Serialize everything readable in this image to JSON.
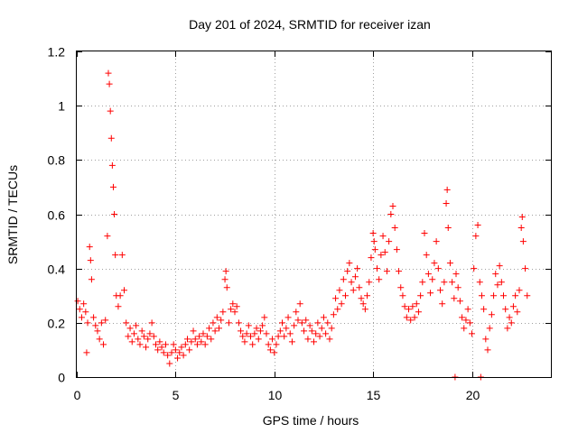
{
  "chart_data": {
    "type": "scatter",
    "title": "Day 201 of 2024, SRMTID for receiver izan",
    "xlabel": "GPS time / hours",
    "ylabel": "SRMTID / TECUs",
    "xlim": [
      0,
      24
    ],
    "ylim": [
      0,
      1.2
    ],
    "xticks": [
      0,
      5,
      10,
      15,
      20
    ],
    "yticks": [
      0,
      0.2,
      0.4,
      0.6,
      0.8,
      1,
      1.2
    ],
    "xtick_labels": [
      "0",
      "5",
      "10",
      "15",
      "20"
    ],
    "ytick_labels": [
      "0",
      "0.2",
      "0.4",
      "0.6",
      "0.8",
      "1",
      "1.2"
    ],
    "grid": true,
    "marker": "+",
    "series": [
      {
        "name": "SRMTID",
        "color": "#ff0000",
        "points": [
          [
            0.05,
            0.28
          ],
          [
            0.15,
            0.25
          ],
          [
            0.25,
            0.22
          ],
          [
            0.35,
            0.27
          ],
          [
            0.45,
            0.24
          ],
          [
            0.5,
            0.09
          ],
          [
            0.55,
            0.2
          ],
          [
            0.65,
            0.48
          ],
          [
            0.7,
            0.43
          ],
          [
            0.75,
            0.36
          ],
          [
            0.85,
            0.22
          ],
          [
            0.95,
            0.19
          ],
          [
            1.05,
            0.17
          ],
          [
            1.15,
            0.14
          ],
          [
            1.25,
            0.2
          ],
          [
            1.35,
            0.12
          ],
          [
            1.45,
            0.21
          ],
          [
            1.55,
            0.52
          ],
          [
            1.6,
            1.12
          ],
          [
            1.65,
            1.08
          ],
          [
            1.7,
            0.98
          ],
          [
            1.75,
            0.88
          ],
          [
            1.8,
            0.78
          ],
          [
            1.85,
            0.7
          ],
          [
            1.9,
            0.6
          ],
          [
            1.95,
            0.45
          ],
          [
            2.0,
            0.3
          ],
          [
            2.1,
            0.26
          ],
          [
            2.2,
            0.3
          ],
          [
            2.3,
            0.45
          ],
          [
            2.4,
            0.32
          ],
          [
            2.5,
            0.2
          ],
          [
            2.6,
            0.15
          ],
          [
            2.7,
            0.18
          ],
          [
            2.8,
            0.13
          ],
          [
            2.9,
            0.16
          ],
          [
            3.0,
            0.19
          ],
          [
            3.1,
            0.14
          ],
          [
            3.2,
            0.12
          ],
          [
            3.3,
            0.17
          ],
          [
            3.4,
            0.15
          ],
          [
            3.5,
            0.11
          ],
          [
            3.6,
            0.14
          ],
          [
            3.7,
            0.16
          ],
          [
            3.8,
            0.2
          ],
          [
            3.9,
            0.15
          ],
          [
            4.0,
            0.12
          ],
          [
            4.1,
            0.1
          ],
          [
            4.2,
            0.13
          ],
          [
            4.3,
            0.11
          ],
          [
            4.4,
            0.09
          ],
          [
            4.5,
            0.12
          ],
          [
            4.6,
            0.08
          ],
          [
            4.7,
            0.05
          ],
          [
            4.8,
            0.09
          ],
          [
            4.9,
            0.12
          ],
          [
            5.0,
            0.1
          ],
          [
            5.1,
            0.07
          ],
          [
            5.2,
            0.09
          ],
          [
            5.3,
            0.11
          ],
          [
            5.4,
            0.08
          ],
          [
            5.5,
            0.12
          ],
          [
            5.6,
            0.14
          ],
          [
            5.7,
            0.1
          ],
          [
            5.8,
            0.13
          ],
          [
            5.9,
            0.17
          ],
          [
            6.0,
            0.14
          ],
          [
            6.1,
            0.12
          ],
          [
            6.2,
            0.15
          ],
          [
            6.3,
            0.13
          ],
          [
            6.4,
            0.16
          ],
          [
            6.5,
            0.12
          ],
          [
            6.6,
            0.15
          ],
          [
            6.7,
            0.18
          ],
          [
            6.8,
            0.14
          ],
          [
            6.9,
            0.2
          ],
          [
            7.0,
            0.17
          ],
          [
            7.1,
            0.22
          ],
          [
            7.2,
            0.18
          ],
          [
            7.3,
            0.21
          ],
          [
            7.4,
            0.24
          ],
          [
            7.5,
            0.36
          ],
          [
            7.55,
            0.39
          ],
          [
            7.6,
            0.33
          ],
          [
            7.7,
            0.2
          ],
          [
            7.8,
            0.25
          ],
          [
            7.9,
            0.27
          ],
          [
            8.0,
            0.24
          ],
          [
            8.1,
            0.26
          ],
          [
            8.2,
            0.2
          ],
          [
            8.3,
            0.17
          ],
          [
            8.4,
            0.15
          ],
          [
            8.5,
            0.13
          ],
          [
            8.6,
            0.16
          ],
          [
            8.7,
            0.19
          ],
          [
            8.8,
            0.15
          ],
          [
            8.9,
            0.12
          ],
          [
            9.0,
            0.16
          ],
          [
            9.1,
            0.18
          ],
          [
            9.2,
            0.14
          ],
          [
            9.3,
            0.17
          ],
          [
            9.4,
            0.19
          ],
          [
            9.5,
            0.22
          ],
          [
            9.6,
            0.16
          ],
          [
            9.7,
            0.12
          ],
          [
            9.8,
            0.1
          ],
          [
            9.9,
            0.14
          ],
          [
            10.0,
            0.09
          ],
          [
            10.1,
            0.12
          ],
          [
            10.2,
            0.15
          ],
          [
            10.3,
            0.17
          ],
          [
            10.4,
            0.2
          ],
          [
            10.5,
            0.15
          ],
          [
            10.6,
            0.18
          ],
          [
            10.7,
            0.22
          ],
          [
            10.8,
            0.16
          ],
          [
            10.9,
            0.13
          ],
          [
            11.0,
            0.19
          ],
          [
            11.1,
            0.24
          ],
          [
            11.2,
            0.21
          ],
          [
            11.3,
            0.27
          ],
          [
            11.4,
            0.2
          ],
          [
            11.5,
            0.17
          ],
          [
            11.6,
            0.21
          ],
          [
            11.7,
            0.14
          ],
          [
            11.8,
            0.19
          ],
          [
            11.9,
            0.17
          ],
          [
            12.0,
            0.13
          ],
          [
            12.1,
            0.16
          ],
          [
            12.2,
            0.2
          ],
          [
            12.3,
            0.15
          ],
          [
            12.4,
            0.18
          ],
          [
            12.5,
            0.22
          ],
          [
            12.6,
            0.16
          ],
          [
            12.7,
            0.2
          ],
          [
            12.8,
            0.14
          ],
          [
            12.9,
            0.18
          ],
          [
            13.0,
            0.23
          ],
          [
            13.1,
            0.29
          ],
          [
            13.2,
            0.25
          ],
          [
            13.3,
            0.32
          ],
          [
            13.4,
            0.27
          ],
          [
            13.5,
            0.36
          ],
          [
            13.6,
            0.3
          ],
          [
            13.7,
            0.39
          ],
          [
            13.8,
            0.42
          ],
          [
            13.9,
            0.35
          ],
          [
            14.0,
            0.32
          ],
          [
            14.1,
            0.37
          ],
          [
            14.2,
            0.4
          ],
          [
            14.3,
            0.33
          ],
          [
            14.4,
            0.29
          ],
          [
            14.5,
            0.27
          ],
          [
            14.6,
            0.25
          ],
          [
            14.7,
            0.3
          ],
          [
            14.8,
            0.35
          ],
          [
            14.9,
            0.44
          ],
          [
            15.0,
            0.53
          ],
          [
            15.05,
            0.5
          ],
          [
            15.1,
            0.47
          ],
          [
            15.2,
            0.4
          ],
          [
            15.3,
            0.36
          ],
          [
            15.4,
            0.45
          ],
          [
            15.5,
            0.52
          ],
          [
            15.6,
            0.46
          ],
          [
            15.7,
            0.39
          ],
          [
            15.8,
            0.5
          ],
          [
            15.9,
            0.6
          ],
          [
            16.0,
            0.63
          ],
          [
            16.1,
            0.55
          ],
          [
            16.2,
            0.47
          ],
          [
            16.3,
            0.39
          ],
          [
            16.4,
            0.33
          ],
          [
            16.5,
            0.3
          ],
          [
            16.6,
            0.26
          ],
          [
            16.7,
            0.22
          ],
          [
            16.8,
            0.25
          ],
          [
            16.9,
            0.21
          ],
          [
            17.0,
            0.26
          ],
          [
            17.1,
            0.22
          ],
          [
            17.2,
            0.27
          ],
          [
            17.3,
            0.24
          ],
          [
            17.4,
            0.3
          ],
          [
            17.5,
            0.35
          ],
          [
            17.6,
            0.53
          ],
          [
            17.7,
            0.45
          ],
          [
            17.8,
            0.38
          ],
          [
            17.9,
            0.31
          ],
          [
            18.0,
            0.36
          ],
          [
            18.1,
            0.42
          ],
          [
            18.2,
            0.5
          ],
          [
            18.3,
            0.4
          ],
          [
            18.4,
            0.32
          ],
          [
            18.5,
            0.27
          ],
          [
            18.6,
            0.35
          ],
          [
            18.7,
            0.64
          ],
          [
            18.75,
            0.69
          ],
          [
            18.8,
            0.55
          ],
          [
            18.9,
            0.42
          ],
          [
            19.0,
            0.35
          ],
          [
            19.1,
            0.29
          ],
          [
            19.15,
            0.0
          ],
          [
            19.2,
            0.38
          ],
          [
            19.3,
            0.33
          ],
          [
            19.4,
            0.28
          ],
          [
            19.5,
            0.22
          ],
          [
            19.6,
            0.18
          ],
          [
            19.7,
            0.21
          ],
          [
            19.8,
            0.25
          ],
          [
            19.9,
            0.2
          ],
          [
            20.0,
            0.16
          ],
          [
            20.1,
            0.4
          ],
          [
            20.2,
            0.52
          ],
          [
            20.3,
            0.56
          ],
          [
            20.4,
            0.35
          ],
          [
            20.45,
            0.0
          ],
          [
            20.5,
            0.3
          ],
          [
            20.6,
            0.25
          ],
          [
            20.7,
            0.14
          ],
          [
            20.8,
            0.1
          ],
          [
            20.9,
            0.18
          ],
          [
            21.0,
            0.23
          ],
          [
            21.1,
            0.3
          ],
          [
            21.2,
            0.38
          ],
          [
            21.3,
            0.34
          ],
          [
            21.4,
            0.41
          ],
          [
            21.5,
            0.35
          ],
          [
            21.6,
            0.3
          ],
          [
            21.7,
            0.25
          ],
          [
            21.8,
            0.18
          ],
          [
            21.9,
            0.22
          ],
          [
            22.0,
            0.2
          ],
          [
            22.1,
            0.26
          ],
          [
            22.2,
            0.3
          ],
          [
            22.3,
            0.24
          ],
          [
            22.4,
            0.32
          ],
          [
            22.5,
            0.55
          ],
          [
            22.55,
            0.59
          ],
          [
            22.6,
            0.5
          ],
          [
            22.7,
            0.4
          ],
          [
            22.8,
            0.3
          ]
        ]
      }
    ]
  }
}
